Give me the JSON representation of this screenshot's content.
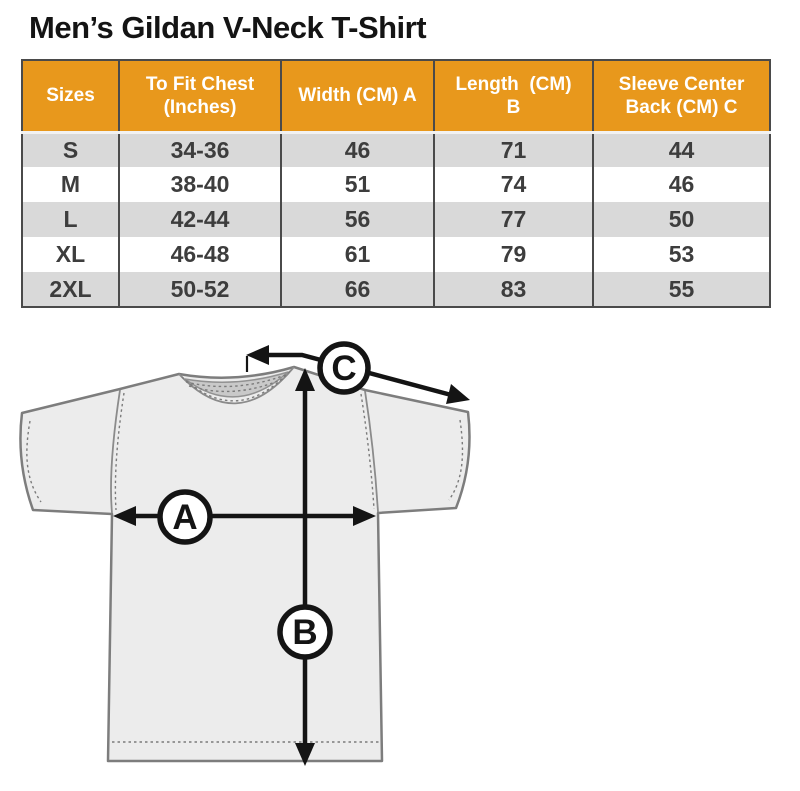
{
  "title": "Men’s Gildan V-Neck T-Shirt",
  "table": {
    "headers": [
      "Sizes",
      "To Fit Chest\n(Inches)",
      "Width (CM) A",
      "Length  (CM)\nB",
      "Sleeve Center\nBack (CM) C"
    ],
    "rows": [
      [
        "S",
        "34-36",
        "46",
        "71",
        "44"
      ],
      [
        "M",
        "38-40",
        "51",
        "74",
        "46"
      ],
      [
        "L",
        "42-44",
        "56",
        "77",
        "50"
      ],
      [
        "XL",
        "46-48",
        "61",
        "79",
        "53"
      ],
      [
        "2XL",
        "50-52",
        "66",
        "83",
        "55"
      ]
    ]
  },
  "diagram": {
    "label_a": "A",
    "label_b": "B",
    "label_c": "C"
  },
  "colors": {
    "header_bg": "#e8981c",
    "header_text": "#ffffff",
    "row_alt_bg": "#d9d9d9",
    "row_text": "#3d3d3d",
    "border": "#4a4a4a",
    "shirt_fill": "#ececec",
    "shirt_outline": "#7d7d7d",
    "neck_inner": "#c9c9c9",
    "arrow": "#141414"
  }
}
